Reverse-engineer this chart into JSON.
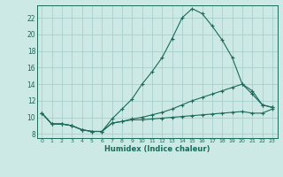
{
  "xlabel": "Humidex (Indice chaleur)",
  "background_color": "#cce9e5",
  "grid_color": "#a0ccc8",
  "line_color": "#1a6b5a",
  "xlim": [
    -0.5,
    23.5
  ],
  "ylim": [
    7.5,
    23.5
  ],
  "xticks": [
    0,
    1,
    2,
    3,
    4,
    5,
    6,
    7,
    8,
    9,
    10,
    11,
    12,
    13,
    14,
    15,
    16,
    17,
    18,
    19,
    20,
    21,
    22,
    23
  ],
  "yticks": [
    8,
    10,
    12,
    14,
    16,
    18,
    20,
    22
  ],
  "curve1_x": [
    0,
    1,
    2,
    3,
    4,
    5,
    6,
    7,
    8,
    9,
    10,
    11,
    12,
    13,
    14,
    15,
    16,
    17,
    18,
    19,
    20,
    21,
    22,
    23
  ],
  "curve1_y": [
    10.5,
    9.2,
    9.2,
    9.0,
    8.5,
    8.3,
    8.3,
    9.8,
    11.0,
    12.2,
    14.0,
    15.5,
    17.2,
    19.5,
    22.0,
    23.1,
    22.5,
    21.0,
    19.3,
    17.2,
    14.0,
    13.2,
    11.5,
    11.2
  ],
  "curve2_x": [
    0,
    1,
    2,
    3,
    4,
    5,
    6,
    7,
    8,
    9,
    10,
    11,
    12,
    13,
    14,
    15,
    16,
    17,
    18,
    19,
    20,
    21,
    22,
    23
  ],
  "curve2_y": [
    10.5,
    9.2,
    9.2,
    9.0,
    8.5,
    8.3,
    8.3,
    9.3,
    9.5,
    9.8,
    10.0,
    10.3,
    10.6,
    11.0,
    11.5,
    12.0,
    12.4,
    12.8,
    13.2,
    13.6,
    14.0,
    12.8,
    11.5,
    11.2
  ],
  "curve3_x": [
    0,
    1,
    2,
    3,
    4,
    5,
    6,
    7,
    8,
    9,
    10,
    11,
    12,
    13,
    14,
    15,
    16,
    17,
    18,
    19,
    20,
    21,
    22,
    23
  ],
  "curve3_y": [
    10.5,
    9.2,
    9.2,
    9.0,
    8.5,
    8.3,
    8.3,
    9.3,
    9.5,
    9.7,
    9.7,
    9.8,
    9.9,
    10.0,
    10.1,
    10.2,
    10.3,
    10.4,
    10.5,
    10.6,
    10.7,
    10.5,
    10.5,
    11.0
  ]
}
